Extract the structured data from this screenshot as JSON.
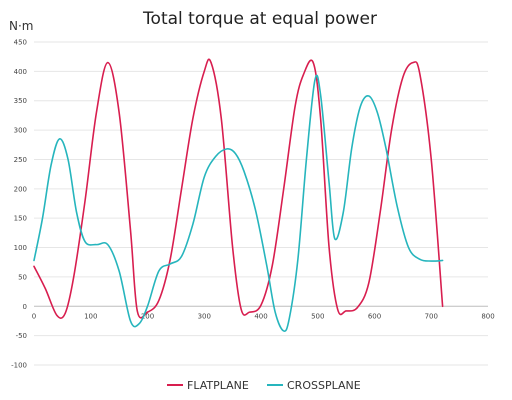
{
  "chart_data": {
    "type": "line",
    "title": "Total torque at equal power",
    "ylabel": "N·m",
    "xlabel": "",
    "xlim": [
      0,
      800
    ],
    "ylim": [
      -100,
      450
    ],
    "x_ticks": [
      0,
      100,
      200,
      300,
      400,
      500,
      600,
      700,
      800
    ],
    "y_ticks": [
      -100,
      -50,
      0,
      50,
      100,
      150,
      200,
      250,
      300,
      350,
      400,
      450
    ],
    "grid": true,
    "legend_position": "bottom",
    "series": [
      {
        "name": "FLATPLANE",
        "color": "#d81e4f",
        "x": [
          0,
          20,
          40,
          55,
          70,
          90,
          110,
          130,
          150,
          170,
          182,
          200,
          220,
          240,
          260,
          280,
          300,
          312,
          330,
          350,
          365,
          380,
          400,
          420,
          440,
          460,
          475,
          492,
          505,
          520,
          535,
          550,
          570,
          590,
          610,
          630,
          650,
          668,
          680,
          700,
          720
        ],
        "y": [
          68,
          30,
          -15,
          -12,
          50,
          180,
          330,
          415,
          330,
          130,
          -8,
          -10,
          10,
          80,
          200,
          320,
          400,
          415,
          320,
          100,
          -5,
          -10,
          2,
          70,
          200,
          340,
          395,
          415,
          320,
          100,
          -5,
          -8,
          -2,
          40,
          160,
          300,
          390,
          415,
          395,
          250,
          0
        ]
      },
      {
        "name": "CROSSPLANE",
        "color": "#26b5bd",
        "x": [
          0,
          15,
          30,
          45,
          60,
          75,
          90,
          110,
          130,
          150,
          170,
          185,
          200,
          220,
          240,
          260,
          280,
          300,
          320,
          340,
          355,
          370,
          390,
          410,
          425,
          440,
          450,
          465,
          480,
          495,
          505,
          520,
          530,
          545,
          560,
          575,
          590,
          605,
          620,
          640,
          660,
          680,
          700,
          720
        ],
        "y": [
          78,
          150,
          240,
          285,
          250,
          160,
          110,
          105,
          105,
          60,
          -25,
          -30,
          0,
          60,
          72,
          85,
          140,
          220,
          255,
          268,
          260,
          230,
          165,
          70,
          -10,
          -42,
          -20,
          80,
          250,
          385,
          360,
          210,
          115,
          160,
          270,
          340,
          358,
          330,
          270,
          170,
          100,
          80,
          77,
          78
        ]
      }
    ]
  }
}
